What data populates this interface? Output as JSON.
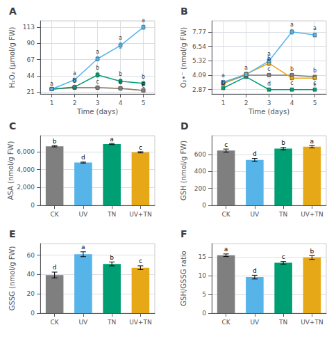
{
  "chart_data": [
    {
      "type": "line",
      "title": "A",
      "x": [
        1,
        2,
        3,
        4,
        5
      ],
      "xlim": [
        0.5,
        5.5
      ],
      "xticks": [
        1,
        2,
        3,
        4,
        5
      ],
      "ylim": [
        18,
        122
      ],
      "yticks": [
        21,
        44,
        67,
        90,
        113
      ],
      "xlabel": "Time (days)",
      "ylabel": "H₂O₂ (μmol/g FW)",
      "grid": true,
      "marker": "square",
      "series": [
        {
          "color": "#e6a817",
          "values": [
            25,
            27,
            27,
            26,
            23
          ],
          "errors": [
            0.8,
            0.8,
            0.8,
            0.8,
            0.8
          ]
        },
        {
          "color": "#7f7f7f",
          "values": [
            25,
            27,
            27,
            26,
            23
          ],
          "errors": [
            0.8,
            0.8,
            0.8,
            0.8,
            0.8
          ]
        },
        {
          "color": "#009e73",
          "values": [
            25,
            28,
            45,
            36,
            33
          ],
          "errors": [
            0.8,
            1,
            3,
            3,
            2
          ]
        },
        {
          "color": "#56b4e9",
          "values": [
            25,
            38,
            68,
            87,
            113
          ],
          "errors": [
            0.8,
            2,
            3,
            4,
            3
          ]
        }
      ],
      "annotations": [
        {
          "x": 1,
          "y": 27.5,
          "text": "a"
        },
        {
          "x": 2,
          "y": 42,
          "text": "a"
        },
        {
          "x": 2,
          "y": 31,
          "text": "b"
        },
        {
          "x": 3,
          "y": 73,
          "text": "a"
        },
        {
          "x": 3,
          "y": 50,
          "text": "b"
        },
        {
          "x": 3,
          "y": 30,
          "text": "c"
        },
        {
          "x": 4,
          "y": 93,
          "text": "a"
        },
        {
          "x": 4,
          "y": 41,
          "text": "b"
        },
        {
          "x": 4,
          "y": 29,
          "text": "c"
        },
        {
          "x": 5,
          "y": 118,
          "text": "a"
        },
        {
          "x": 5,
          "y": 37,
          "text": "b"
        },
        {
          "x": 5,
          "y": 27,
          "text": "c"
        },
        {
          "x": 5,
          "y": 24,
          "text": "c"
        }
      ]
    },
    {
      "type": "line",
      "title": "B",
      "x": [
        1,
        2,
        3,
        4,
        5
      ],
      "xlim": [
        0.5,
        5.5
      ],
      "xticks": [
        1,
        2,
        3,
        4,
        5
      ],
      "ylim": [
        2.5,
        8.7
      ],
      "yticks": [
        2.87,
        4.09,
        5.32,
        6.54,
        7.77
      ],
      "xlabel": "Time (days)",
      "ylabel": "O₂•⁻ (nmol/g FW)",
      "grid": true,
      "marker": "square",
      "series": [
        {
          "color": "#009e73",
          "values": [
            3.0,
            3.95,
            2.87,
            2.87,
            2.87
          ],
          "errors": [
            0.08,
            0.12,
            0.08,
            0.08,
            0.08
          ]
        },
        {
          "color": "#7f7f7f",
          "values": [
            3.4,
            4.1,
            4.1,
            4.1,
            3.95
          ],
          "errors": [
            0.08,
            0.12,
            0.1,
            0.1,
            0.1
          ]
        },
        {
          "color": "#e6a817",
          "values": [
            3.4,
            4.2,
            5.1,
            3.85,
            3.85
          ],
          "errors": [
            0.08,
            0.12,
            0.2,
            0.15,
            0.1
          ]
        },
        {
          "color": "#56b4e9",
          "values": [
            3.5,
            4.15,
            5.3,
            7.77,
            7.5
          ],
          "errors": [
            0.08,
            0.12,
            0.2,
            0.2,
            0.15
          ]
        }
      ],
      "annotations": [
        {
          "x": 1,
          "y": 3.75,
          "text": "a"
        },
        {
          "x": 1,
          "y": 3.1,
          "text": "b"
        },
        {
          "x": 2,
          "y": 4.42,
          "text": "a"
        },
        {
          "x": 3,
          "y": 5.58,
          "text": "a"
        },
        {
          "x": 3,
          "y": 5.2,
          "text": "b"
        },
        {
          "x": 3,
          "y": 4.28,
          "text": "c"
        },
        {
          "x": 3,
          "y": 3.05,
          "text": "d"
        },
        {
          "x": 4,
          "y": 8.1,
          "text": "a"
        },
        {
          "x": 4,
          "y": 4.3,
          "text": "b"
        },
        {
          "x": 4,
          "y": 3.1,
          "text": "c"
        },
        {
          "x": 5,
          "y": 7.77,
          "text": "a"
        },
        {
          "x": 5,
          "y": 4.2,
          "text": "b"
        },
        {
          "x": 5,
          "y": 3.1,
          "text": "c"
        },
        {
          "x": 5,
          "y": 3.0,
          "text": "c"
        }
      ]
    },
    {
      "type": "bar",
      "title": "C",
      "categories": [
        "CK",
        "UV",
        "TN",
        "UV+TN"
      ],
      "values": [
        6620,
        4790,
        6870,
        5940
      ],
      "errors": [
        70,
        55,
        65,
        65
      ],
      "colors": [
        "#7f7f7f",
        "#56b4e9",
        "#009e73",
        "#e6a817"
      ],
      "annotations": [
        {
          "x": "CK",
          "text": "b"
        },
        {
          "x": "UV",
          "text": "d"
        },
        {
          "x": "TN",
          "text": "a"
        },
        {
          "x": "UV+TN",
          "text": "c"
        }
      ],
      "ylabel": "ASA (nmol/g FW)",
      "ylim": [
        0,
        7800
      ],
      "yticks": [
        0,
        2000,
        4000,
        6000
      ],
      "grid": "y"
    },
    {
      "type": "bar",
      "title": "D",
      "categories": [
        "CK",
        "UV",
        "TN",
        "UV+TN"
      ],
      "values": [
        645,
        535,
        668,
        690
      ],
      "errors": [
        18,
        18,
        14,
        14
      ],
      "colors": [
        "#7f7f7f",
        "#56b4e9",
        "#009e73",
        "#e6a817"
      ],
      "annotations": [
        {
          "x": "CK",
          "text": "c"
        },
        {
          "x": "UV",
          "text": "d"
        },
        {
          "x": "TN",
          "text": "b"
        },
        {
          "x": "UV+TN",
          "text": "a"
        }
      ],
      "ylabel": "GSH (nmol/g FW)",
      "ylim": [
        0,
        820
      ],
      "yticks": [
        0,
        200,
        400,
        600
      ],
      "grid": "y"
    },
    {
      "type": "bar",
      "title": "E",
      "categories": [
        "CK",
        "UV",
        "TN",
        "UV+TN"
      ],
      "values": [
        39.5,
        61,
        51,
        47
      ],
      "errors": [
        3.0,
        2.5,
        2.0,
        2.0
      ],
      "colors": [
        "#7f7f7f",
        "#56b4e9",
        "#009e73",
        "#e6a817"
      ],
      "annotations": [
        {
          "x": "CK",
          "text": "d"
        },
        {
          "x": "UV",
          "text": "a"
        },
        {
          "x": "TN",
          "text": "b"
        },
        {
          "x": "UV+TN",
          "text": "c"
        }
      ],
      "ylabel": "GSSG (nmol/g FW)",
      "ylim": [
        0,
        72
      ],
      "yticks": [
        0,
        20,
        40,
        60
      ],
      "grid": "y"
    },
    {
      "type": "bar",
      "title": "F",
      "categories": [
        "CK",
        "UV",
        "TN",
        "UV+TN"
      ],
      "values": [
        15.4,
        9.6,
        13.4,
        14.8
      ],
      "errors": [
        0.35,
        0.5,
        0.35,
        0.5
      ],
      "colors": [
        "#7f7f7f",
        "#56b4e9",
        "#009e73",
        "#e6a817"
      ],
      "annotations": [
        {
          "x": "CK",
          "text": "a"
        },
        {
          "x": "UV",
          "text": "d"
        },
        {
          "x": "TN",
          "text": "c"
        },
        {
          "x": "UV+TN",
          "text": "b"
        }
      ],
      "ylabel": "GSH/GSSG ratio",
      "ylim": [
        0,
        18.5
      ],
      "yticks": [
        0,
        5,
        10,
        15
      ],
      "grid": "y"
    }
  ]
}
